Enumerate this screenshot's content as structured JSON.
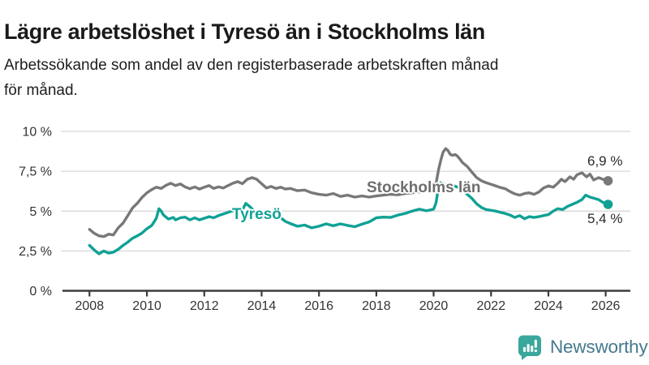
{
  "header": {
    "title": "Lägre arbetslöshet i Tyresö än i Stockholms län",
    "subtitle": "Arbetssökande som andel av den registerbaserade arbetskraften månad för månad.",
    "subtitle_lines": [
      "Arbetssökande som andel av den registerbaserade arbetskraften månad",
      "för månad."
    ]
  },
  "chart_data": {
    "type": "line",
    "title": "Lägre arbetslöshet i Tyresö än i Stockholms län",
    "subtitle": "Arbetssökande som andel av den registerbaserade arbetskraften månad för månad.",
    "grid": true,
    "legend_position": "inline-labels-on-lines",
    "x_axis": {
      "range": [
        2007,
        2026.85
      ],
      "ticks": [
        {
          "value": 2008,
          "label": "2008"
        },
        {
          "value": 2010,
          "label": "2010"
        },
        {
          "value": 2012,
          "label": "2012"
        },
        {
          "value": 2014,
          "label": "2014"
        },
        {
          "value": 2016,
          "label": "2016"
        },
        {
          "value": 2018,
          "label": "2018"
        },
        {
          "value": 2020,
          "label": "2020"
        },
        {
          "value": 2022,
          "label": "2022"
        },
        {
          "value": 2024,
          "label": "2024"
        },
        {
          "value": 2026,
          "label": "2026"
        }
      ]
    },
    "y_axis": {
      "range": [
        0,
        10
      ],
      "unit": "%",
      "ticks": [
        {
          "value": 0,
          "label": "0 %"
        },
        {
          "value": 2.5,
          "label": "2,5 %"
        },
        {
          "value": 5,
          "label": "5 %"
        },
        {
          "value": 7.5,
          "label": "7,5 %"
        },
        {
          "value": 10,
          "label": "10 %"
        }
      ]
    },
    "series": [
      {
        "name": "Stockholms län",
        "color": "#787878",
        "label_color": "#6e6e6e",
        "end_value": 6.9,
        "end_label": "6,9 %",
        "points": [
          [
            2008.0,
            3.85
          ],
          [
            2008.17,
            3.6
          ],
          [
            2008.33,
            3.45
          ],
          [
            2008.5,
            3.4
          ],
          [
            2008.67,
            3.55
          ],
          [
            2008.83,
            3.5
          ],
          [
            2009.0,
            3.95
          ],
          [
            2009.17,
            4.25
          ],
          [
            2009.33,
            4.7
          ],
          [
            2009.5,
            5.2
          ],
          [
            2009.67,
            5.5
          ],
          [
            2009.83,
            5.85
          ],
          [
            2010.0,
            6.15
          ],
          [
            2010.17,
            6.35
          ],
          [
            2010.33,
            6.5
          ],
          [
            2010.5,
            6.42
          ],
          [
            2010.67,
            6.62
          ],
          [
            2010.83,
            6.75
          ],
          [
            2011.0,
            6.6
          ],
          [
            2011.17,
            6.7
          ],
          [
            2011.33,
            6.52
          ],
          [
            2011.5,
            6.4
          ],
          [
            2011.67,
            6.52
          ],
          [
            2011.83,
            6.38
          ],
          [
            2012.0,
            6.5
          ],
          [
            2012.17,
            6.6
          ],
          [
            2012.33,
            6.42
          ],
          [
            2012.5,
            6.52
          ],
          [
            2012.67,
            6.45
          ],
          [
            2012.83,
            6.6
          ],
          [
            2013.0,
            6.75
          ],
          [
            2013.17,
            6.85
          ],
          [
            2013.33,
            6.72
          ],
          [
            2013.5,
            7.0
          ],
          [
            2013.67,
            7.1
          ],
          [
            2013.83,
            7.0
          ],
          [
            2014.0,
            6.72
          ],
          [
            2014.17,
            6.45
          ],
          [
            2014.33,
            6.55
          ],
          [
            2014.5,
            6.42
          ],
          [
            2014.67,
            6.5
          ],
          [
            2014.83,
            6.38
          ],
          [
            2015.0,
            6.42
          ],
          [
            2015.25,
            6.28
          ],
          [
            2015.5,
            6.32
          ],
          [
            2015.75,
            6.15
          ],
          [
            2016.0,
            6.05
          ],
          [
            2016.25,
            6.0
          ],
          [
            2016.5,
            6.1
          ],
          [
            2016.75,
            5.92
          ],
          [
            2017.0,
            6.0
          ],
          [
            2017.25,
            5.88
          ],
          [
            2017.5,
            5.95
          ],
          [
            2017.75,
            5.88
          ],
          [
            2018.0,
            5.95
          ],
          [
            2018.25,
            6.0
          ],
          [
            2018.5,
            6.05
          ],
          [
            2018.75,
            6.02
          ],
          [
            2019.0,
            6.1
          ],
          [
            2019.25,
            6.15
          ],
          [
            2019.5,
            6.2
          ],
          [
            2019.75,
            6.3
          ],
          [
            2020.0,
            6.42
          ],
          [
            2020.08,
            6.7
          ],
          [
            2020.17,
            7.6
          ],
          [
            2020.25,
            8.2
          ],
          [
            2020.33,
            8.7
          ],
          [
            2020.42,
            8.92
          ],
          [
            2020.5,
            8.8
          ],
          [
            2020.58,
            8.55
          ],
          [
            2020.67,
            8.5
          ],
          [
            2020.75,
            8.55
          ],
          [
            2020.83,
            8.45
          ],
          [
            2020.92,
            8.25
          ],
          [
            2021.0,
            8.05
          ],
          [
            2021.17,
            7.8
          ],
          [
            2021.33,
            7.45
          ],
          [
            2021.5,
            7.1
          ],
          [
            2021.67,
            6.9
          ],
          [
            2021.83,
            6.78
          ],
          [
            2022.0,
            6.68
          ],
          [
            2022.17,
            6.58
          ],
          [
            2022.33,
            6.48
          ],
          [
            2022.5,
            6.4
          ],
          [
            2022.67,
            6.22
          ],
          [
            2022.83,
            6.08
          ],
          [
            2023.0,
            6.0
          ],
          [
            2023.17,
            6.1
          ],
          [
            2023.33,
            6.15
          ],
          [
            2023.5,
            6.05
          ],
          [
            2023.67,
            6.2
          ],
          [
            2023.83,
            6.45
          ],
          [
            2024.0,
            6.58
          ],
          [
            2024.17,
            6.5
          ],
          [
            2024.33,
            6.75
          ],
          [
            2024.45,
            7.0
          ],
          [
            2024.58,
            6.85
          ],
          [
            2024.75,
            7.15
          ],
          [
            2024.88,
            7.0
          ],
          [
            2025.0,
            7.28
          ],
          [
            2025.17,
            7.4
          ],
          [
            2025.33,
            7.15
          ],
          [
            2025.45,
            7.32
          ],
          [
            2025.58,
            6.95
          ],
          [
            2025.75,
            7.1
          ],
          [
            2025.9,
            7.0
          ],
          [
            2026.08,
            6.9
          ]
        ]
      },
      {
        "name": "Tyresö",
        "color": "#10a195",
        "label_color": "#10a195",
        "end_value": 5.4,
        "end_label": "5,4 %",
        "points": [
          [
            2008.0,
            2.85
          ],
          [
            2008.17,
            2.55
          ],
          [
            2008.33,
            2.32
          ],
          [
            2008.5,
            2.5
          ],
          [
            2008.67,
            2.36
          ],
          [
            2008.83,
            2.42
          ],
          [
            2009.0,
            2.6
          ],
          [
            2009.17,
            2.85
          ],
          [
            2009.33,
            3.05
          ],
          [
            2009.5,
            3.3
          ],
          [
            2009.67,
            3.45
          ],
          [
            2009.83,
            3.62
          ],
          [
            2010.0,
            3.9
          ],
          [
            2010.17,
            4.1
          ],
          [
            2010.33,
            4.55
          ],
          [
            2010.42,
            5.15
          ],
          [
            2010.5,
            5.0
          ],
          [
            2010.58,
            4.75
          ],
          [
            2010.75,
            4.5
          ],
          [
            2010.92,
            4.6
          ],
          [
            2011.0,
            4.45
          ],
          [
            2011.17,
            4.58
          ],
          [
            2011.33,
            4.62
          ],
          [
            2011.5,
            4.45
          ],
          [
            2011.67,
            4.58
          ],
          [
            2011.83,
            4.45
          ],
          [
            2012.0,
            4.55
          ],
          [
            2012.17,
            4.65
          ],
          [
            2012.33,
            4.58
          ],
          [
            2012.5,
            4.72
          ],
          [
            2012.67,
            4.82
          ],
          [
            2012.83,
            4.92
          ],
          [
            2013.0,
            5.02
          ],
          [
            2013.17,
            5.12
          ],
          [
            2013.33,
            5.08
          ],
          [
            2013.45,
            5.48
          ],
          [
            2013.58,
            5.3
          ],
          [
            2013.75,
            5.0
          ],
          [
            2013.92,
            4.82
          ],
          [
            2014.0,
            4.7
          ],
          [
            2014.17,
            4.55
          ],
          [
            2014.33,
            4.65
          ],
          [
            2014.5,
            4.52
          ],
          [
            2014.67,
            4.58
          ],
          [
            2014.83,
            4.35
          ],
          [
            2015.0,
            4.22
          ],
          [
            2015.25,
            4.05
          ],
          [
            2015.5,
            4.12
          ],
          [
            2015.75,
            3.95
          ],
          [
            2016.0,
            4.05
          ],
          [
            2016.25,
            4.2
          ],
          [
            2016.5,
            4.08
          ],
          [
            2016.75,
            4.2
          ],
          [
            2017.0,
            4.1
          ],
          [
            2017.25,
            4.02
          ],
          [
            2017.5,
            4.18
          ],
          [
            2017.75,
            4.32
          ],
          [
            2018.0,
            4.58
          ],
          [
            2018.25,
            4.62
          ],
          [
            2018.5,
            4.6
          ],
          [
            2018.75,
            4.75
          ],
          [
            2019.0,
            4.85
          ],
          [
            2019.25,
            5.0
          ],
          [
            2019.5,
            5.12
          ],
          [
            2019.75,
            5.02
          ],
          [
            2020.0,
            5.12
          ],
          [
            2020.08,
            5.5
          ],
          [
            2020.17,
            6.5
          ],
          [
            2020.25,
            6.78
          ],
          [
            2020.42,
            6.65
          ],
          [
            2020.58,
            6.72
          ],
          [
            2020.75,
            6.55
          ],
          [
            2020.92,
            6.45
          ],
          [
            2021.0,
            6.35
          ],
          [
            2021.17,
            6.05
          ],
          [
            2021.33,
            5.8
          ],
          [
            2021.5,
            5.45
          ],
          [
            2021.67,
            5.22
          ],
          [
            2021.83,
            5.1
          ],
          [
            2022.0,
            5.05
          ],
          [
            2022.17,
            5.0
          ],
          [
            2022.33,
            4.92
          ],
          [
            2022.5,
            4.85
          ],
          [
            2022.67,
            4.75
          ],
          [
            2022.83,
            4.6
          ],
          [
            2023.0,
            4.72
          ],
          [
            2023.17,
            4.52
          ],
          [
            2023.33,
            4.65
          ],
          [
            2023.5,
            4.6
          ],
          [
            2023.67,
            4.65
          ],
          [
            2023.83,
            4.72
          ],
          [
            2024.0,
            4.78
          ],
          [
            2024.17,
            5.0
          ],
          [
            2024.33,
            5.15
          ],
          [
            2024.5,
            5.1
          ],
          [
            2024.67,
            5.3
          ],
          [
            2024.83,
            5.42
          ],
          [
            2025.0,
            5.55
          ],
          [
            2025.17,
            5.72
          ],
          [
            2025.3,
            6.0
          ],
          [
            2025.45,
            5.88
          ],
          [
            2025.6,
            5.8
          ],
          [
            2025.75,
            5.72
          ],
          [
            2025.9,
            5.55
          ],
          [
            2026.08,
            5.42
          ]
        ]
      }
    ],
    "colors": {
      "gridline": "#d8d8d8",
      "axis": "#3c3c3c",
      "tick_text": "#333333"
    }
  },
  "footer": {
    "brand": "Newsworthy",
    "icon": "newsworthy-bar-chart-speech-bubble-icon",
    "brand_teal": "#3aa79c",
    "brand_text_color": "#45798d"
  }
}
